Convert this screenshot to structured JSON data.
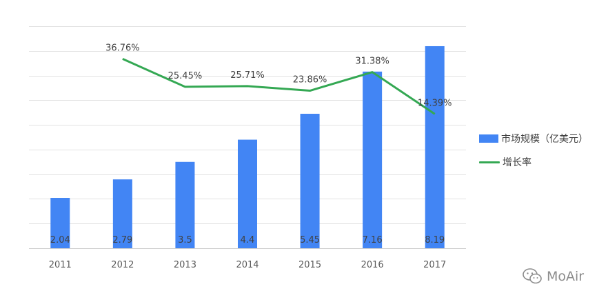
{
  "chart_data": {
    "type": "bar",
    "categories": [
      "2011",
      "2012",
      "2013",
      "2014",
      "2015",
      "2016",
      "2017"
    ],
    "series": [
      {
        "name": "市场规模（亿美元）",
        "type": "bar",
        "values": [
          2.04,
          2.79,
          3.5,
          4.4,
          5.45,
          7.16,
          8.19
        ],
        "value_labels": [
          "2.04",
          "2.79",
          "3.5",
          "4.4",
          "5.45",
          "7.16",
          "8.19"
        ],
        "color": "#4285f4"
      },
      {
        "name": "增长率",
        "type": "line",
        "x": [
          "2012",
          "2013",
          "2014",
          "2015",
          "2016",
          "2017"
        ],
        "values": [
          36.76,
          25.45,
          25.71,
          23.86,
          31.38,
          14.39
        ],
        "value_labels": [
          "36.76%",
          "25.45%",
          "25.71%",
          "23.86%",
          "31.38%",
          "14.39%"
        ],
        "color": "#34a853"
      }
    ],
    "ylim": [
      0,
      9
    ],
    "line_ylim": [
      -40,
      50
    ],
    "grid": true,
    "legend_position": "right"
  },
  "watermark": {
    "text": "MoAir",
    "icon": "wechat-icon"
  }
}
